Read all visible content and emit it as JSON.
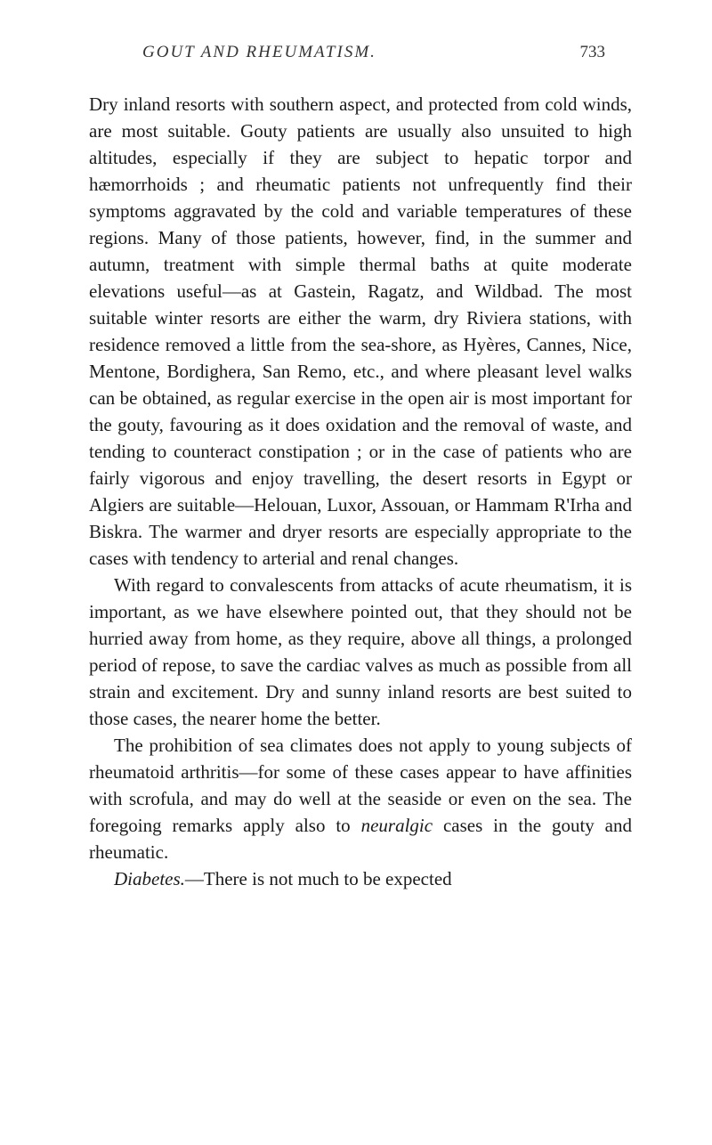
{
  "header": {
    "running_title": "GOUT AND RHEUMATISM.",
    "page_number": "733"
  },
  "paragraphs": {
    "p1": "Dry inland resorts with southern aspect, and protected from cold winds, are most suitable. Gouty patients are usually also unsuited to high altitudes, especially if they are subject to hepatic torpor and hæmorrhoids ; and rheumatic patients not unfrequently find their symptoms aggravated by the cold and variable temperatures of these regions. Many of those patients, however, find, in the summer and autumn, treatment with simple thermal baths at quite moderate elevations useful—as at Gastein, Ragatz, and Wildbad. The most suitable winter resorts are either the warm, dry Riviera stations, with residence removed a little from the sea-shore, as Hyères, Cannes, Nice, Mentone, Bordighera, San Remo, etc., and where pleasant level walks can be obtained, as regular exercise in the open air is most important for the gouty, favouring as it does oxidation and the removal of waste, and tending to counteract constipation ; or in the case of patients who are fairly vigorous and enjoy travelling, the desert resorts in Egypt or Algiers are suitable—Helouan, Luxor, Assouan, or Hammam R'Irha and Biskra. The warmer and dryer resorts are especially appropriate to the cases with tendency to arterial and renal changes.",
    "p2": "With regard to convalescents from attacks of acute rheumatism, it is important, as we have elsewhere pointed out, that they should not be hurried away from home, as they require, above all things, a prolonged period of repose, to save the cardiac valves as much as possible from all strain and excitement. Dry and sunny inland resorts are best suited to those cases, the nearer home the better.",
    "p3_part1": "The prohibition of sea climates does not apply to young subjects of rheumatoid arthritis—for some of these cases appear to have affinities with scrofula, and may do well at the seaside or even on the sea. The foregoing remarks apply also to ",
    "p3_italic": "neuralgic",
    "p3_part2": " cases in the gouty and rheumatic.",
    "p4_italic": "Diabetes.",
    "p4_part2": "—There is not much to be expected"
  }
}
